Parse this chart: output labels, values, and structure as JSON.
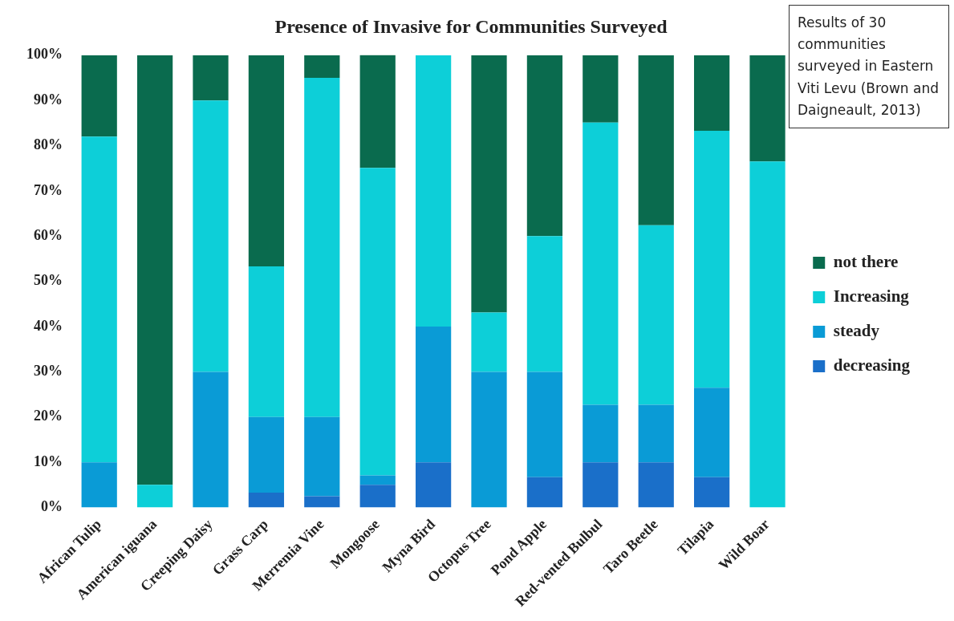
{
  "chart_data": {
    "type": "bar",
    "title": "Presence of Invasive for Communities Surveyed",
    "stacked": true,
    "legend": "right",
    "grid": false,
    "categories": [
      "African Tulip",
      "American iguana",
      "Creeping Daisy",
      "Grass Carp",
      "Merremia Vine",
      "Mongoose",
      "Myna Bird",
      "Octopus Tree",
      "Pond Apple",
      "Red-vented Bulbul",
      "Taro Beetle",
      "Tilapia",
      "Wild Boar"
    ],
    "series": [
      {
        "name": "decreasing",
        "color": "#1a6fc9",
        "values": [
          0,
          0,
          0,
          3.3,
          2.5,
          5,
          10,
          0,
          6.7,
          10,
          10,
          6.7,
          0
        ]
      },
      {
        "name": "steady",
        "color": "#0a9bd6",
        "values": [
          10,
          0,
          30,
          16.7,
          17.5,
          2.1,
          30,
          30,
          23.3,
          12.7,
          12.7,
          19.8,
          0
        ]
      },
      {
        "name": "Increasing",
        "color": "#0dcfd8",
        "values": [
          72,
          5,
          60,
          33.3,
          75,
          68,
          60,
          13.1,
          30,
          62.4,
          39.7,
          56.8,
          76.5
        ]
      },
      {
        "name": "not there",
        "color": "#0a6b4e",
        "values": [
          18,
          95,
          10,
          46.7,
          5,
          25,
          0,
          56.9,
          40,
          14.9,
          37.6,
          16.7,
          23.5
        ]
      }
    ],
    "ylim": [
      0,
      100
    ],
    "yticks": [
      {
        "value": 0,
        "label": "0%"
      },
      {
        "value": 10,
        "label": "10%"
      },
      {
        "value": 20,
        "label": "20%"
      },
      {
        "value": 30,
        "label": "30%"
      },
      {
        "value": 40,
        "label": "40%"
      },
      {
        "value": 50,
        "label": "50%"
      },
      {
        "value": 60,
        "label": "60%"
      },
      {
        "value": 70,
        "label": "70%"
      },
      {
        "value": 80,
        "label": "80%"
      },
      {
        "value": 90,
        "label": "90%"
      },
      {
        "value": 100,
        "label": "100%"
      }
    ],
    "annotations": [
      "Results of 30 communities surveyed in Eastern Viti Levu (Brown and Daigneault, 2013)"
    ]
  }
}
